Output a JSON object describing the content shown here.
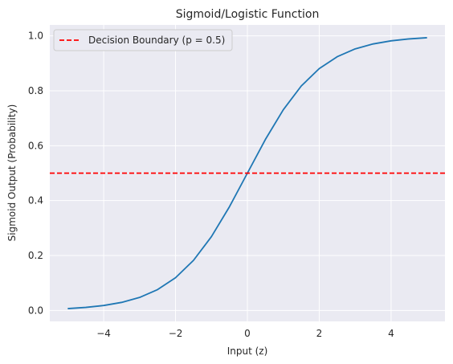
{
  "chart_data": {
    "type": "line",
    "title": "Sigmoid/Logistic Function",
    "xlabel": "Input (z)",
    "ylabel": "Sigmoid Output (Probability)",
    "xlim": [
      -5.5,
      5.5
    ],
    "ylim": [
      -0.04,
      1.04
    ],
    "x_ticks": [
      -4,
      -2,
      0,
      2,
      4
    ],
    "x_tick_labels": [
      "−4",
      "−2",
      "0",
      "2",
      "4"
    ],
    "y_ticks": [
      0.0,
      0.2,
      0.4,
      0.6,
      0.8,
      1.0
    ],
    "y_tick_labels": [
      "0.0",
      "0.2",
      "0.4",
      "0.6",
      "0.8",
      "1.0"
    ],
    "grid": true,
    "legend_position": "top-left",
    "series": [
      {
        "color": "#1f77b4",
        "x": [
          -5,
          -4.5,
          -4,
          -3.5,
          -3,
          -2.5,
          -2,
          -1.5,
          -1,
          -0.5,
          0,
          0.5,
          1,
          1.5,
          2,
          2.5,
          3,
          3.5,
          4,
          4.5,
          5
        ],
        "values": [
          0.0067,
          0.011,
          0.018,
          0.0293,
          0.0474,
          0.0759,
          0.1192,
          0.1824,
          0.2689,
          0.3775,
          0.5,
          0.6225,
          0.7311,
          0.8176,
          0.8808,
          0.9241,
          0.9526,
          0.9707,
          0.982,
          0.989,
          0.9933
        ]
      }
    ],
    "reference_lines": [
      {
        "name": "Decision Boundary (p = 0.5)",
        "orientation": "horizontal",
        "value": 0.5,
        "color": "#ff0000",
        "style": "dashed"
      }
    ]
  }
}
